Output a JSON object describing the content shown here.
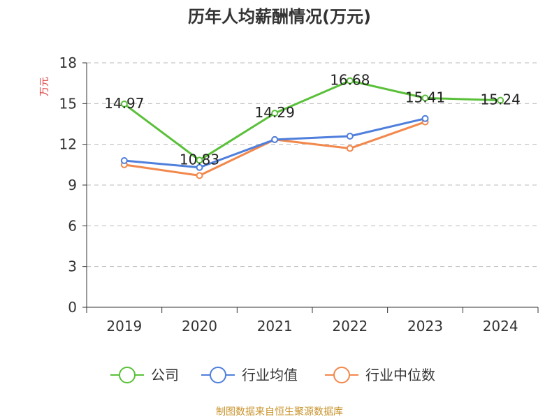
{
  "chart_data": {
    "type": "line",
    "title": "历年人均薪酬情况(万元)",
    "ylabel": "万元",
    "xlabel": "",
    "categories": [
      "2019",
      "2020",
      "2021",
      "2022",
      "2023",
      "2024"
    ],
    "ylim": [
      0,
      18
    ],
    "yticks": [
      0,
      3,
      6,
      9,
      12,
      15,
      18
    ],
    "grid": "horizontal dashed",
    "legend_position": "bottom",
    "series": [
      {
        "name": "公司",
        "color": "#5ac03a",
        "values": [
          14.97,
          10.83,
          14.29,
          16.68,
          15.41,
          15.24
        ],
        "labels": [
          "14.97",
          "10.83",
          "14.29",
          "16.68",
          "15.41",
          "15.24"
        ]
      },
      {
        "name": "行业均值",
        "color": "#4f7fdc",
        "values": [
          10.8,
          10.3,
          12.35,
          12.6,
          13.9,
          null
        ]
      },
      {
        "name": "行业中位数",
        "color": "#f2884c",
        "values": [
          10.5,
          9.7,
          12.35,
          11.7,
          13.65,
          null
        ]
      }
    ]
  },
  "source": {
    "text": "制图数据来自恒生聚源数据库",
    "color": "#c8922a"
  },
  "colors": {
    "ylabel": "#e03a3a",
    "axis": "#333333",
    "grid": "#bbbbbb"
  }
}
